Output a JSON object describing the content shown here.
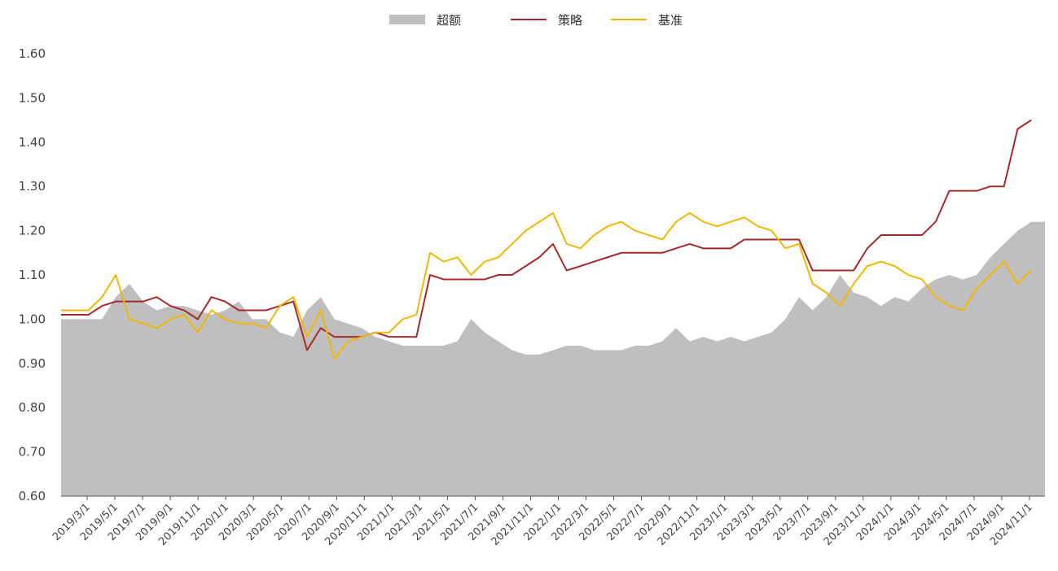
{
  "chart_data": {
    "type": "line",
    "legend": {
      "placement": "top-center",
      "entries": [
        {
          "name": "超额",
          "kind": "area",
          "color": "#bfbfbf"
        },
        {
          "name": "策略",
          "kind": "line",
          "color": "#a52a2a"
        },
        {
          "name": "基准",
          "kind": "line",
          "color": "#f2b705"
        }
      ]
    },
    "ylim": [
      0.6,
      1.6
    ],
    "yticks": [
      "0.60",
      "0.70",
      "0.80",
      "0.90",
      "1.00",
      "1.10",
      "1.20",
      "1.30",
      "1.40",
      "1.50",
      "1.60"
    ],
    "grid": false,
    "categories": [
      "2019/3/1",
      "2019/5/1",
      "2019/7/1",
      "2019/9/1",
      "2019/11/1",
      "2020/1/1",
      "2020/3/1",
      "2020/5/1",
      "2020/7/1",
      "2020/9/1",
      "2020/11/1",
      "2021/1/1",
      "2021/3/1",
      "2021/5/1",
      "2021/7/1",
      "2021/9/1",
      "2021/11/1",
      "2022/1/1",
      "2022/3/1",
      "2022/5/1",
      "2022/7/1",
      "2022/9/1",
      "2022/11/1",
      "2023/1/1",
      "2023/3/1",
      "2023/5/1",
      "2023/7/1",
      "2023/9/1",
      "2023/11/1",
      "2024/1/1",
      "2024/3/1",
      "2024/5/1",
      "2024/7/1",
      "2024/9/1",
      "2024/11/1"
    ],
    "x": [
      0,
      0.5,
      1,
      1.5,
      2,
      2.5,
      3,
      3.5,
      4,
      4.5,
      5,
      5.5,
      6,
      6.5,
      7,
      7.5,
      8,
      8.5,
      9,
      9.5,
      10,
      10.5,
      11,
      11.5,
      12,
      12.5,
      13,
      13.5,
      14,
      14.5,
      15,
      15.5,
      16,
      16.5,
      17,
      17.5,
      18,
      18.5,
      19,
      19.5,
      20,
      20.5,
      21,
      21.5,
      22,
      22.5,
      23,
      23.5,
      24,
      24.5,
      25,
      25.5,
      26,
      26.5,
      27,
      27.5,
      28,
      28.5,
      29,
      29.5,
      30,
      30.5,
      31,
      31.5,
      32,
      32.5,
      33,
      33.5,
      34,
      34.5
    ],
    "series": [
      {
        "name": "超额",
        "type": "area",
        "color": "#bfbfbf",
        "values": [
          1.0,
          1.0,
          1.05,
          1.08,
          1.04,
          1.02,
          1.03,
          1.03,
          1.02,
          1.01,
          1.02,
          1.04,
          1.0,
          1.0,
          0.97,
          0.96,
          1.02,
          1.05,
          1.0,
          0.99,
          0.98,
          0.96,
          0.95,
          0.94,
          0.94,
          0.94,
          0.94,
          0.95,
          1.0,
          0.97,
          0.95,
          0.93,
          0.92,
          0.92,
          0.93,
          0.94,
          0.94,
          0.93,
          0.93,
          0.93,
          0.94,
          0.94,
          0.95,
          0.98,
          0.95,
          0.96,
          0.95,
          0.96,
          0.95,
          0.96,
          0.97,
          1.0,
          1.05,
          1.02,
          1.05,
          1.1,
          1.06,
          1.05,
          1.03,
          1.05,
          1.04,
          1.07,
          1.09,
          1.1,
          1.09,
          1.1,
          1.14,
          1.17,
          1.2,
          1.22
        ]
      },
      {
        "name": "策略",
        "type": "line",
        "color": "#a52a2a",
        "values": [
          1.01,
          1.03,
          1.04,
          1.04,
          1.04,
          1.05,
          1.03,
          1.02,
          1.0,
          1.05,
          1.04,
          1.02,
          1.02,
          1.02,
          1.03,
          1.04,
          0.93,
          0.98,
          0.96,
          0.96,
          0.96,
          0.97,
          0.96,
          0.96,
          0.96,
          1.1,
          1.09,
          1.09,
          1.09,
          1.09,
          1.1,
          1.1,
          1.12,
          1.14,
          1.17,
          1.11,
          1.12,
          1.13,
          1.14,
          1.15,
          1.15,
          1.15,
          1.15,
          1.16,
          1.17,
          1.16,
          1.16,
          1.16,
          1.18,
          1.18,
          1.18,
          1.18,
          1.18,
          1.11,
          1.11,
          1.11,
          1.11,
          1.16,
          1.19,
          1.19,
          1.19,
          1.19,
          1.22,
          1.29,
          1.29,
          1.29,
          1.3,
          1.3,
          1.43,
          1.45
        ]
      },
      {
        "name": "基准",
        "type": "line",
        "color": "#f2b705",
        "values": [
          1.02,
          1.05,
          1.1,
          1.0,
          0.99,
          0.98,
          1.0,
          1.01,
          0.97,
          1.02,
          1.0,
          0.99,
          0.99,
          0.98,
          1.03,
          1.05,
          0.96,
          1.02,
          0.91,
          0.95,
          0.96,
          0.97,
          0.97,
          1.0,
          1.01,
          1.15,
          1.13,
          1.14,
          1.1,
          1.13,
          1.14,
          1.17,
          1.2,
          1.22,
          1.24,
          1.17,
          1.16,
          1.19,
          1.21,
          1.22,
          1.2,
          1.19,
          1.18,
          1.22,
          1.24,
          1.22,
          1.21,
          1.22,
          1.23,
          1.21,
          1.2,
          1.16,
          1.17,
          1.08,
          1.06,
          1.03,
          1.08,
          1.12,
          1.13,
          1.12,
          1.1,
          1.09,
          1.05,
          1.03,
          1.02,
          1.07,
          1.1,
          1.13,
          1.08,
          1.11
        ]
      }
    ]
  }
}
